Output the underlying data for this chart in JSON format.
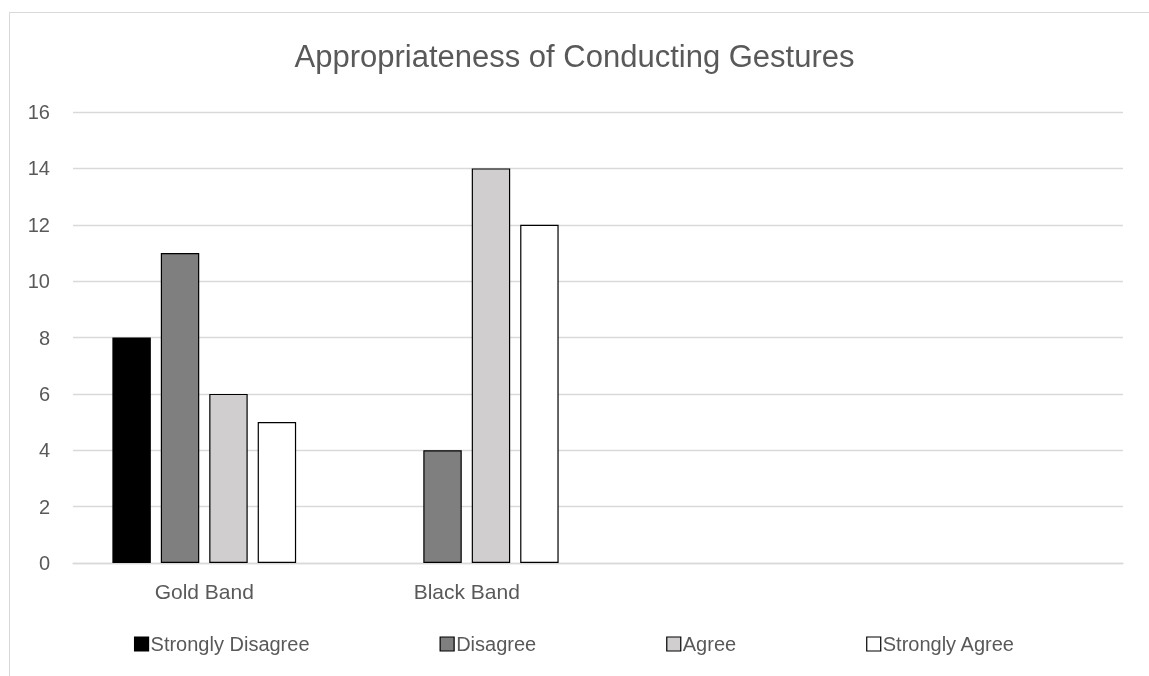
{
  "chart_data": {
    "type": "bar",
    "title": "Appropriateness of Conducting Gestures",
    "categories": [
      "Gold Band",
      "Black Band",
      null,
      null
    ],
    "series": [
      {
        "name": "Strongly Disagree",
        "color": "#000000",
        "values": [
          8,
          0,
          null,
          null
        ]
      },
      {
        "name": "Disagree",
        "color": "#7f7f7f",
        "values": [
          11,
          4,
          null,
          null
        ]
      },
      {
        "name": "Agree",
        "color": "#d0cece",
        "values": [
          6,
          14,
          null,
          null
        ]
      },
      {
        "name": "Strongly Agree",
        "color": "#ffffff",
        "values": [
          5,
          12,
          null,
          null
        ]
      }
    ],
    "ylim": [
      0,
      16
    ],
    "yticks": [
      0,
      2,
      4,
      6,
      8,
      10,
      12,
      14,
      16
    ],
    "grid": "y",
    "legend": "bottom"
  }
}
